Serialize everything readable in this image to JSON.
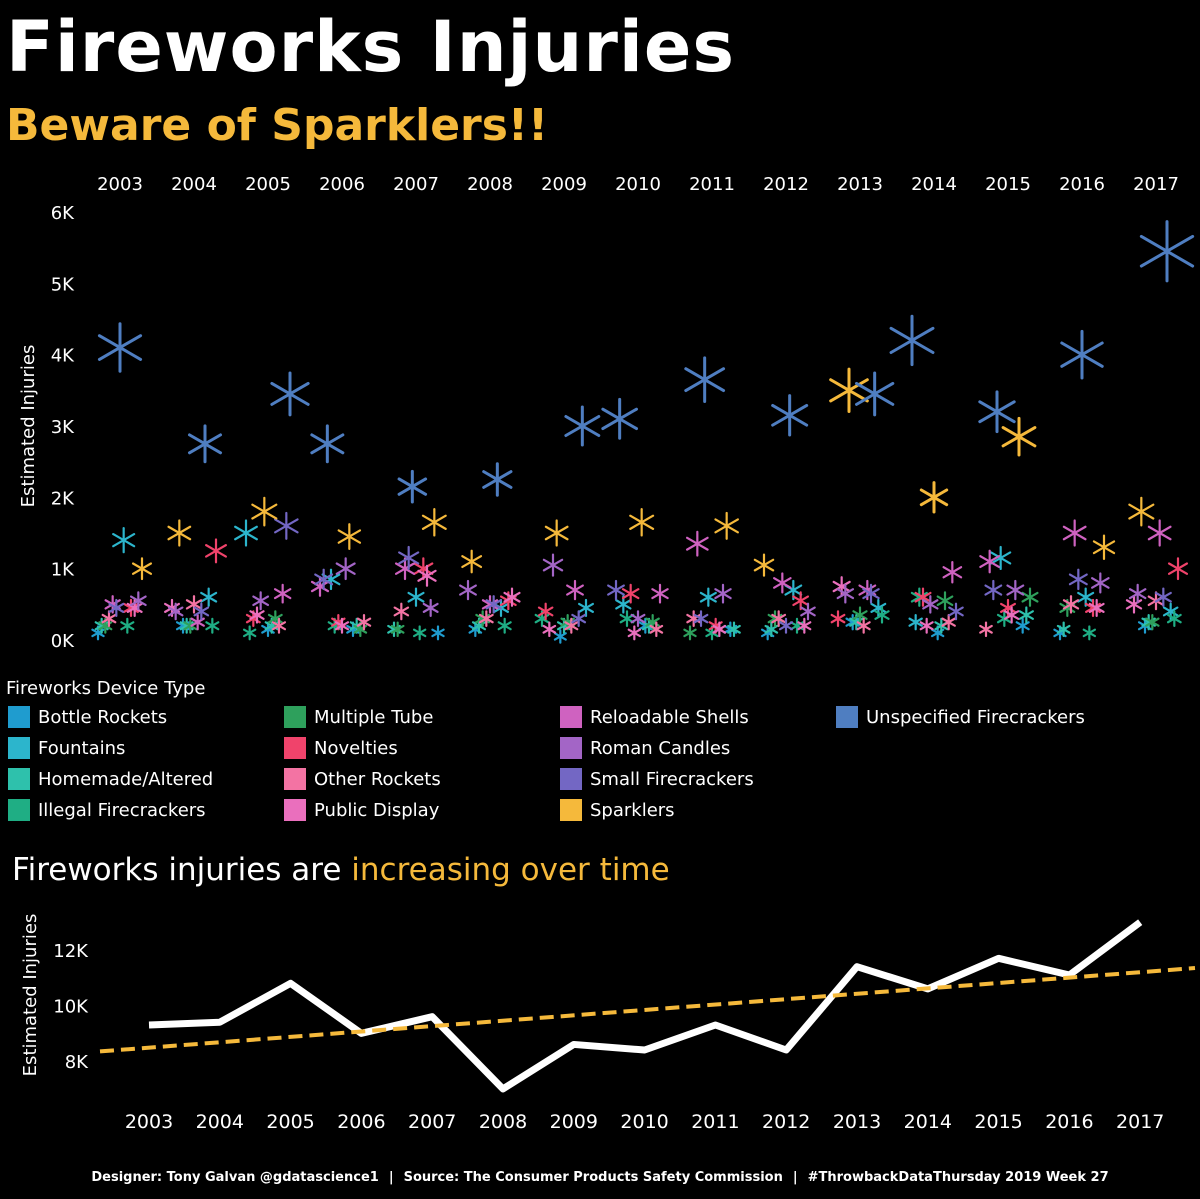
{
  "header": {
    "title": "Fireworks Injuries",
    "subtitle": "Beware of Sparklers!!"
  },
  "legend": {
    "title": "Fireworks Device Type"
  },
  "line_section": {
    "title_plain": "Fireworks injuries are ",
    "title_highlight": "increasing over time"
  },
  "footer": {
    "designer": "Designer: Tony Galvan @gdatascience1",
    "source": "Source: The Consumer Products Safety Commission",
    "tag": "#ThrowbackDataThursday 2019 Week 27",
    "separator": "|"
  },
  "chart_data": [
    {
      "type": "scatter",
      "ylabel": "Estimated Injuries",
      "ylim": [
        0,
        6000
      ],
      "yticks": [
        {
          "value": 0,
          "label": "0K"
        },
        {
          "value": 1000,
          "label": "1K"
        },
        {
          "value": 2000,
          "label": "2K"
        },
        {
          "value": 3000,
          "label": "3K"
        },
        {
          "value": 4000,
          "label": "4K"
        },
        {
          "value": 5000,
          "label": "5K"
        },
        {
          "value": 6000,
          "label": "6K"
        }
      ],
      "years": [
        "2003",
        "2004",
        "2005",
        "2006",
        "2007",
        "2008",
        "2009",
        "2010",
        "2011",
        "2012",
        "2013",
        "2014",
        "2015",
        "2016",
        "2017"
      ],
      "series": [
        {
          "name": "Bottle Rockets",
          "color": "#1f9ccf",
          "values": [
            100,
            200,
            150,
            150,
            100,
            150,
            50,
            200,
            150,
            100,
            250,
            100,
            200,
            100,
            200
          ]
        },
        {
          "name": "Fountains",
          "color": "#2cb5cc",
          "values": [
            1400,
            600,
            1500,
            850,
            600,
            450,
            450,
            500,
            600,
            700,
            450,
            250,
            1150,
            600,
            400
          ]
        },
        {
          "name": "Homemade/Altered",
          "color": "#2ec1ac",
          "values": [
            200,
            200,
            200,
            200,
            150,
            200,
            200,
            200,
            150,
            150,
            250,
            200,
            350,
            150,
            250
          ]
        },
        {
          "name": "Illegal Firecrackers",
          "color": "#1fae84",
          "values": [
            200,
            200,
            100,
            200,
            100,
            200,
            300,
            300,
            100,
            200,
            350,
            600,
            300,
            100,
            300
          ]
        },
        {
          "name": "Multiple Tube",
          "color": "#2ea05c",
          "values": [
            200,
            200,
            300,
            150,
            150,
            300,
            250,
            250,
            100,
            300,
            350,
            550,
            600,
            450,
            250
          ]
        },
        {
          "name": "Novelties",
          "color": "#f0436b",
          "values": [
            450,
            1250,
            300,
            250,
            1000,
            550,
            400,
            650,
            200,
            550,
            300,
            600,
            450,
            450,
            1000
          ]
        },
        {
          "name": "Other Rockets",
          "color": "#f373a3",
          "values": [
            300,
            500,
            200,
            250,
            400,
            300,
            200,
            150,
            300,
            300,
            200,
            250,
            150,
            500,
            550
          ]
        },
        {
          "name": "Public Display",
          "color": "#ea6fbd",
          "values": [
            450,
            450,
            350,
            200,
            900,
            600,
            150,
            100,
            150,
            200,
            750,
            200,
            350,
            450,
            500
          ]
        },
        {
          "name": "Reloadable Shells",
          "color": "#cf62c0",
          "values": [
            500,
            250,
            650,
            750,
            1000,
            500,
            700,
            650,
            1350,
            800,
            700,
            950,
            1100,
            1500,
            1500
          ]
        },
        {
          "name": "Roman Candles",
          "color": "#a365c6",
          "values": [
            550,
            400,
            550,
            1000,
            450,
            700,
            1050,
            300,
            650,
            400,
            650,
            500,
            700,
            800,
            650
          ]
        },
        {
          "name": "Small Firecrackers",
          "color": "#7367c4",
          "values": [
            450,
            400,
            1600,
            850,
            1150,
            500,
            300,
            700,
            300,
            200,
            650,
            400,
            700,
            850,
            600
          ]
        },
        {
          "name": "Sparklers",
          "color": "#f5b93b",
          "values": [
            1000,
            1500,
            1800,
            1450,
            1650,
            1100,
            1500,
            1650,
            1600,
            1050,
            3500,
            2000,
            2850,
            1300,
            1800
          ]
        },
        {
          "name": "Unspecified Firecrackers",
          "color": "#4f7ec1",
          "values": [
            4100,
            2750,
            3450,
            2750,
            2150,
            2250,
            3000,
            3100,
            3650,
            3150,
            3450,
            4200,
            3200,
            4000,
            5450
          ]
        }
      ]
    },
    {
      "type": "line",
      "ylabel": "Estimated Injuries",
      "ylim": [
        6600,
        13800
      ],
      "yticks": [
        {
          "value": 8000,
          "label": "8K"
        },
        {
          "value": 10000,
          "label": "10K"
        },
        {
          "value": 12000,
          "label": "12K"
        }
      ],
      "x": [
        "2003",
        "2004",
        "2005",
        "2006",
        "2007",
        "2008",
        "2009",
        "2010",
        "2011",
        "2012",
        "2013",
        "2014",
        "2015",
        "2016",
        "2017"
      ],
      "series": [
        {
          "color": "#ffffff",
          "values": [
            9300,
            9400,
            10800,
            9000,
            9600,
            7000,
            8600,
            8400,
            9300,
            8400,
            11400,
            10600,
            11700,
            11100,
            13000
          ]
        }
      ],
      "trend": {
        "color": "#f5b93b",
        "style": "dashed",
        "start_value": 8350,
        "end_value": 11350
      }
    }
  ]
}
